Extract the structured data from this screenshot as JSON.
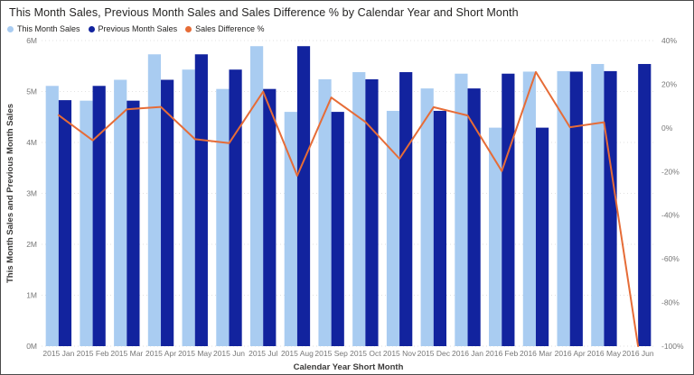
{
  "window": {
    "type": "report-visual"
  },
  "chart_data": {
    "type": "bar",
    "subtype": "clustered-column-and-line-combo",
    "title": "This Month Sales, Previous Month Sales and Sales Difference % by Calendar Year and Short Month",
    "categories": [
      "2015 Jan",
      "2015 Feb",
      "2015 Mar",
      "2015 Apr",
      "2015 May",
      "2015 Jun",
      "2015 Jul",
      "2015 Aug",
      "2015 Sep",
      "2015 Oct",
      "2015 Nov",
      "2015 Dec",
      "2016 Jan",
      "2016 Feb",
      "2016 Mar",
      "2016 Apr",
      "2016 May",
      "2016 Jun"
    ],
    "series": [
      {
        "name": "This Month Sales",
        "type": "column",
        "axis": "left",
        "unit": "M",
        "color": "#A9CCF1",
        "values": [
          5.11,
          4.82,
          5.23,
          5.73,
          5.43,
          5.05,
          5.89,
          4.6,
          5.24,
          5.38,
          4.62,
          5.06,
          5.35,
          4.29,
          5.39,
          5.4,
          5.54,
          null
        ]
      },
      {
        "name": "Previous Month Sales",
        "type": "column",
        "axis": "left",
        "unit": "M",
        "color": "#12239E",
        "values": [
          4.83,
          5.11,
          4.82,
          5.23,
          5.73,
          5.43,
          5.05,
          5.89,
          4.6,
          5.24,
          5.38,
          4.62,
          5.06,
          5.35,
          4.29,
          5.39,
          5.4,
          5.54
        ]
      },
      {
        "name": "Sales Difference %",
        "type": "line",
        "axis": "right",
        "unit": "%",
        "color": "#E66C37",
        "values": [
          5.8,
          -5.7,
          8.5,
          9.6,
          -5.2,
          -7.0,
          16.6,
          -21.9,
          13.9,
          2.7,
          -14.1,
          9.5,
          5.7,
          -19.8,
          25.6,
          0.3,
          2.6,
          -100
        ]
      }
    ],
    "left_axis": {
      "title": "This Month Sales and Previous Month Sales",
      "min": 0,
      "max": 6,
      "tick_labels": [
        "0M",
        "1M",
        "2M",
        "3M",
        "4M",
        "5M",
        "6M"
      ]
    },
    "right_axis": {
      "min": -100,
      "max": 40,
      "tick_labels": [
        "40%",
        "20%",
        "0%",
        "-20%",
        "-40%",
        "-60%",
        "-80%",
        "-100%"
      ]
    },
    "x_axis": {
      "title": "Calendar Year Short Month"
    },
    "grid": {
      "style": "dotted",
      "color": "#E2E2E2",
      "lines": "horizontal-left-axis"
    },
    "legend_position": "top-left"
  },
  "colors": {
    "grid": "#E2E2E2",
    "axis_text": "#777777",
    "axis_title_text": "#3b3a39",
    "title_text": "#252423",
    "border": "#4a4a4a"
  }
}
